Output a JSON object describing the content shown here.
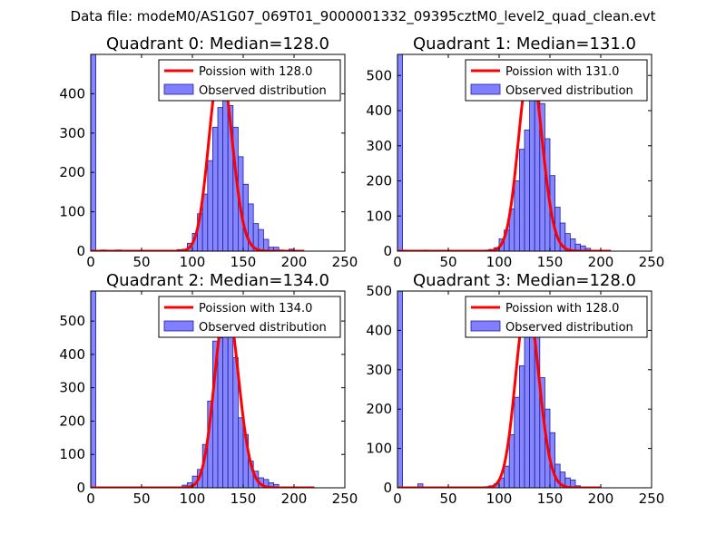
{
  "suptitle": "Data file: modeM0/AS1G07_069T01_9000001332_09395cztM0_level2_quad_clean.evt",
  "colors": {
    "poisson": "#ff0000",
    "histogram_fill": "#7f7fff",
    "histogram_edge": "#2020a0"
  },
  "chart_data": [
    {
      "type": "bar",
      "title": "Quadrant 0: Median=128.0",
      "xlim": [
        0,
        250
      ],
      "ylim": [
        0,
        500
      ],
      "xticks": [
        0,
        50,
        100,
        150,
        200,
        250
      ],
      "yticks": [
        0,
        100,
        200,
        300,
        400
      ],
      "legend": {
        "placement": "top-right",
        "line_label": "Poission with 128.0",
        "bar_label": "Observed distribution"
      },
      "median": 128.0,
      "poisson_peak": 472,
      "poisson_xmax": 210,
      "bin_edges": [
        0,
        5,
        10,
        15,
        20,
        25,
        30,
        35,
        40,
        45,
        50,
        55,
        60,
        65,
        70,
        75,
        80,
        85,
        90,
        95,
        100,
        105,
        110,
        115,
        120,
        125,
        130,
        135,
        140,
        145,
        150,
        155,
        160,
        165,
        170,
        175,
        180,
        185,
        190,
        195,
        200,
        205
      ],
      "counts": [
        500,
        2,
        3,
        1,
        0,
        3,
        1,
        0,
        0,
        0,
        0,
        0,
        0,
        0,
        0,
        0,
        2,
        4,
        5,
        20,
        45,
        95,
        145,
        230,
        315,
        365,
        450,
        370,
        315,
        240,
        170,
        120,
        70,
        55,
        30,
        10,
        10,
        3,
        1,
        5,
        1
      ]
    },
    {
      "type": "bar",
      "title": "Quadrant 1: Median=131.0",
      "xlim": [
        0,
        250
      ],
      "ylim": [
        0,
        560
      ],
      "xticks": [
        0,
        50,
        100,
        150,
        200,
        250
      ],
      "yticks": [
        0,
        100,
        200,
        300,
        400,
        500
      ],
      "legend": {
        "placement": "top-right",
        "line_label": "Poission with 131.0",
        "bar_label": "Observed distribution"
      },
      "median": 131.0,
      "poisson_peak": 533,
      "poisson_xmax": 210,
      "bin_edges": [
        0,
        5,
        10,
        15,
        20,
        25,
        30,
        35,
        40,
        45,
        50,
        55,
        60,
        65,
        70,
        75,
        80,
        85,
        90,
        95,
        100,
        105,
        110,
        115,
        120,
        125,
        130,
        135,
        140,
        145,
        150,
        155,
        160,
        165,
        170,
        175,
        180,
        185,
        190,
        195,
        200,
        205
      ],
      "counts": [
        560,
        3,
        2,
        2,
        0,
        3,
        0,
        0,
        0,
        0,
        0,
        0,
        0,
        0,
        0,
        0,
        0,
        3,
        5,
        10,
        35,
        60,
        120,
        200,
        290,
        345,
        510,
        480,
        420,
        320,
        215,
        125,
        80,
        50,
        35,
        20,
        15,
        8,
        2,
        1,
        1
      ]
    },
    {
      "type": "bar",
      "title": "Quadrant 2: Median=134.0",
      "xlim": [
        0,
        250
      ],
      "ylim": [
        0,
        590
      ],
      "xticks": [
        0,
        50,
        100,
        150,
        200,
        250
      ],
      "yticks": [
        0,
        100,
        200,
        300,
        400,
        500
      ],
      "legend": {
        "placement": "top-right",
        "line_label": "Poission with 134.0",
        "bar_label": "Observed distribution"
      },
      "median": 134.0,
      "poisson_peak": 555,
      "poisson_xmax": 220,
      "bin_edges": [
        0,
        5,
        10,
        15,
        20,
        25,
        30,
        35,
        40,
        45,
        50,
        55,
        60,
        65,
        70,
        75,
        80,
        85,
        90,
        95,
        100,
        105,
        110,
        115,
        120,
        125,
        130,
        135,
        140,
        145,
        150,
        155,
        160,
        165,
        170,
        175,
        180,
        185,
        190,
        195,
        200,
        205,
        210,
        215,
        220
      ],
      "counts": [
        590,
        2,
        1,
        1,
        0,
        2,
        1,
        0,
        0,
        0,
        0,
        0,
        0,
        0,
        0,
        0,
        0,
        2,
        8,
        15,
        35,
        55,
        130,
        260,
        440,
        450,
        520,
        460,
        390,
        210,
        160,
        80,
        50,
        30,
        25,
        15,
        10,
        3,
        2,
        1,
        0,
        0,
        0,
        0
      ]
    },
    {
      "type": "bar",
      "title": "Quadrant 3: Median=128.0",
      "xlim": [
        0,
        250
      ],
      "ylim": [
        0,
        500
      ],
      "xticks": [
        0,
        50,
        100,
        150,
        200,
        250
      ],
      "yticks": [
        0,
        100,
        200,
        300,
        400,
        500
      ],
      "legend": {
        "placement": "top-right",
        "line_label": "Poission with 128.0",
        "bar_label": "Observed distribution"
      },
      "median": 128.0,
      "poisson_peak": 472,
      "poisson_xmax": 200,
      "bin_edges": [
        0,
        5,
        10,
        15,
        20,
        25,
        30,
        35,
        40,
        45,
        50,
        55,
        60,
        65,
        70,
        75,
        80,
        85,
        90,
        95,
        100,
        105,
        110,
        115,
        120,
        125,
        130,
        135,
        140,
        145,
        150,
        155,
        160,
        165,
        170,
        175,
        180,
        185,
        190,
        195,
        200
      ],
      "counts": [
        500,
        2,
        1,
        1,
        10,
        1,
        0,
        0,
        0,
        0,
        0,
        0,
        0,
        0,
        0,
        0,
        0,
        2,
        5,
        10,
        25,
        55,
        135,
        230,
        310,
        425,
        470,
        390,
        280,
        200,
        140,
        60,
        40,
        25,
        20,
        5,
        2,
        1,
        0,
        0
      ]
    }
  ]
}
